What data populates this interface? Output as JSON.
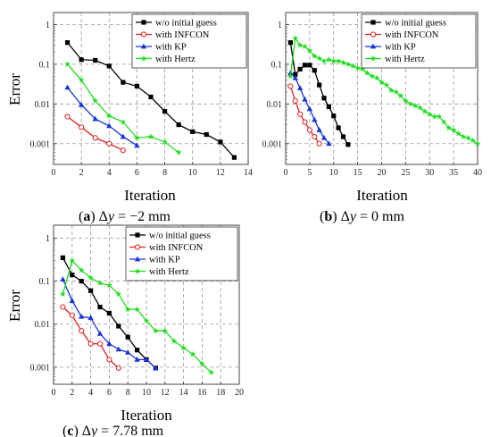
{
  "chart_data": [
    {
      "type": "line",
      "caption": {
        "letter": "a",
        "var": "y",
        "value": "= −2 mm"
      },
      "xlabel": "Iteration",
      "ylabel": "Error",
      "xlim": [
        0,
        14
      ],
      "xticks": [
        0,
        2,
        4,
        6,
        8,
        10,
        12,
        14
      ],
      "yscale": "log",
      "ylim": [
        0.0003,
        2
      ],
      "yticks": [
        1,
        0.1,
        0.01,
        0.001
      ],
      "ytick_labels": [
        "1",
        "0.1",
        "0.01",
        "0.001"
      ],
      "grid": true,
      "legend": "top-right",
      "series": [
        {
          "name": "w/o initial guess",
          "color": "#000000",
          "marker": "square",
          "filled": true,
          "x": [
            1,
            2,
            3,
            4,
            5,
            6,
            7,
            8,
            9,
            10,
            11,
            12,
            13
          ],
          "y": [
            0.35,
            0.13,
            0.125,
            0.09,
            0.035,
            0.028,
            0.015,
            0.0065,
            0.003,
            0.002,
            0.0017,
            0.0011,
            0.00045
          ]
        },
        {
          "name": "with INFCON",
          "color": "#e02020",
          "marker": "circle",
          "filled": false,
          "x": [
            1,
            2,
            3,
            4,
            5
          ],
          "y": [
            0.0048,
            0.0026,
            0.0014,
            0.001,
            0.00068
          ]
        },
        {
          "name": "with KP",
          "color": "#1a35d6",
          "marker": "triangle",
          "filled": true,
          "x": [
            1,
            2,
            3,
            4,
            5,
            6
          ],
          "y": [
            0.026,
            0.0095,
            0.0042,
            0.0028,
            0.0015,
            0.0009
          ]
        },
        {
          "name": "with Hertz",
          "color": "#22dd22",
          "marker": "star",
          "filled": true,
          "x": [
            1,
            2,
            3,
            4,
            5,
            6,
            7,
            8,
            9
          ],
          "y": [
            0.1,
            0.04,
            0.012,
            0.005,
            0.0035,
            0.0014,
            0.0015,
            0.0011,
            0.0006
          ]
        }
      ]
    },
    {
      "type": "line",
      "caption": {
        "letter": "b",
        "var": "y",
        "value": "= 0 mm"
      },
      "xlabel": "Iteration",
      "ylabel": "Error",
      "xlim": [
        0,
        40
      ],
      "xticks": [
        0,
        5,
        10,
        15,
        20,
        25,
        30,
        35,
        40
      ],
      "yscale": "log",
      "ylim": [
        0.0003,
        2
      ],
      "yticks": [
        1,
        0.1,
        0.01,
        0.001
      ],
      "ytick_labels": [
        "1",
        "0.1",
        "0.01",
        "0.001"
      ],
      "grid": true,
      "legend": "top-right",
      "series": [
        {
          "name": "w/o initial guess",
          "color": "#000000",
          "marker": "square",
          "filled": true,
          "x": [
            1,
            2,
            3,
            4,
            5,
            6,
            7,
            8,
            9,
            10,
            11,
            12,
            13
          ],
          "y": [
            0.35,
            0.055,
            0.075,
            0.095,
            0.095,
            0.07,
            0.03,
            0.014,
            0.0085,
            0.005,
            0.0025,
            0.0015,
            0.00095
          ]
        },
        {
          "name": "with INFCON",
          "color": "#e02020",
          "marker": "circle",
          "filled": false,
          "x": [
            1,
            2,
            3,
            4,
            5,
            6,
            7
          ],
          "y": [
            0.028,
            0.012,
            0.0055,
            0.0035,
            0.0022,
            0.0015,
            0.001
          ]
        },
        {
          "name": "with KP",
          "color": "#1a35d6",
          "marker": "triangle",
          "filled": true,
          "x": [
            1,
            2,
            3,
            4,
            5,
            6,
            7,
            8,
            9
          ],
          "y": [
            0.06,
            0.045,
            0.025,
            0.013,
            0.0075,
            0.004,
            0.0022,
            0.0014,
            0.001
          ]
        },
        {
          "name": "with Hertz",
          "color": "#22dd22",
          "marker": "star",
          "filled": true,
          "x": [
            1,
            2,
            3,
            4,
            5,
            6,
            7,
            8,
            9,
            10,
            11,
            12,
            13,
            14,
            15,
            16,
            17,
            18,
            19,
            20,
            21,
            22,
            23,
            24,
            25,
            26,
            27,
            28,
            29,
            30,
            31,
            32,
            33,
            34,
            35,
            36,
            37,
            38,
            39,
            40
          ],
          "y": [
            0.05,
            0.45,
            0.3,
            0.28,
            0.22,
            0.16,
            0.14,
            0.12,
            0.13,
            0.12,
            0.12,
            0.11,
            0.1,
            0.09,
            0.08,
            0.075,
            0.06,
            0.05,
            0.045,
            0.035,
            0.03,
            0.022,
            0.02,
            0.016,
            0.012,
            0.01,
            0.009,
            0.008,
            0.0065,
            0.0055,
            0.0048,
            0.0048,
            0.0035,
            0.0025,
            0.0022,
            0.0018,
            0.0015,
            0.0014,
            0.0012,
            0.001
          ]
        }
      ]
    },
    {
      "type": "line",
      "caption": {
        "letter": "c",
        "var": "y",
        "value": "= 7.78 mm"
      },
      "xlabel": "Iteration",
      "ylabel": "Error",
      "xlim": [
        0,
        20
      ],
      "xticks": [
        0,
        2,
        4,
        6,
        8,
        10,
        12,
        14,
        16,
        18,
        20
      ],
      "yscale": "log",
      "ylim": [
        0.0004,
        2
      ],
      "yticks": [
        1,
        0.1,
        0.01,
        0.001
      ],
      "ytick_labels": [
        "1",
        "0.1",
        "0.01",
        "0.001"
      ],
      "grid": true,
      "legend": "top-right",
      "series": [
        {
          "name": "w/o initial guess",
          "color": "#000000",
          "marker": "square",
          "filled": true,
          "x": [
            1,
            2,
            3,
            4,
            5,
            6,
            7,
            8,
            9,
            10,
            11
          ],
          "y": [
            0.35,
            0.14,
            0.1,
            0.06,
            0.025,
            0.018,
            0.009,
            0.005,
            0.0025,
            0.0015,
            0.00095
          ]
        },
        {
          "name": "with INFCON",
          "color": "#e02020",
          "marker": "circle",
          "filled": false,
          "x": [
            1,
            2,
            3,
            4,
            5,
            6,
            7
          ],
          "y": [
            0.025,
            0.016,
            0.007,
            0.0035,
            0.0035,
            0.0015,
            0.00095
          ]
        },
        {
          "name": "with KP",
          "color": "#1a35d6",
          "marker": "triangle",
          "filled": true,
          "x": [
            1,
            2,
            3,
            4,
            5,
            6,
            7,
            8,
            9,
            10,
            11
          ],
          "y": [
            0.11,
            0.035,
            0.015,
            0.014,
            0.006,
            0.0035,
            0.0026,
            0.0022,
            0.0015,
            0.0015,
            0.00095
          ]
        },
        {
          "name": "with Hertz",
          "color": "#22dd22",
          "marker": "star",
          "filled": true,
          "x": [
            1,
            2,
            3,
            4,
            5,
            6,
            7,
            8,
            9,
            10,
            11,
            12,
            13,
            14,
            15,
            16,
            17
          ],
          "y": [
            0.05,
            0.3,
            0.18,
            0.12,
            0.09,
            0.08,
            0.05,
            0.022,
            0.022,
            0.012,
            0.007,
            0.007,
            0.004,
            0.0028,
            0.002,
            0.0012,
            0.00075
          ]
        }
      ]
    }
  ]
}
